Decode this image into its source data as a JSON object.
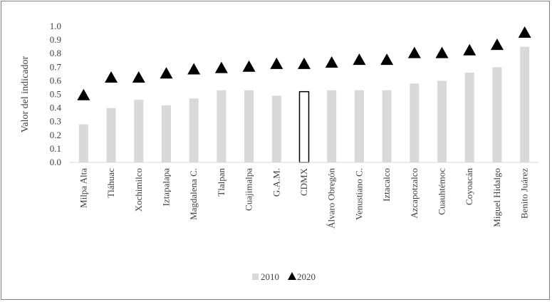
{
  "chart_data": {
    "type": "bar",
    "ylabel": "Valor del indicador",
    "ylim": [
      0,
      1.0
    ],
    "yticks": [
      "0.0",
      "0.1",
      "0.2",
      "0.3",
      "0.4",
      "0.5",
      "0.6",
      "0.7",
      "0.8",
      "0.9",
      "1.0"
    ],
    "grid": false,
    "legend_position": "bottom",
    "highlight_category": "CDMX",
    "categories": [
      "Milpa Alta",
      "Tláhuac",
      "Xochimilco",
      "Iztapalapa",
      "Magdalena C.",
      "Tlalpan",
      "Cuajimalpa",
      "G.A.M.",
      "CDMX",
      "Álvaro Obregón",
      "Venustiano C.",
      "Iztacalco",
      "Azcapotzalco",
      "Cuauhtémoc",
      "Coyoacán",
      "Miguel Hidalgo",
      "Benito Juárez"
    ],
    "series": [
      {
        "name": "2010",
        "type": "bar",
        "color": "#d9d9d9",
        "values": [
          0.28,
          0.4,
          0.46,
          0.42,
          0.47,
          0.53,
          0.53,
          0.49,
          0.52,
          0.53,
          0.53,
          0.53,
          0.58,
          0.6,
          0.66,
          0.7,
          0.85
        ]
      },
      {
        "name": "2020",
        "type": "marker",
        "marker": "triangle",
        "color": "#000000",
        "values": [
          0.49,
          0.62,
          0.62,
          0.65,
          0.68,
          0.69,
          0.7,
          0.72,
          0.72,
          0.73,
          0.75,
          0.75,
          0.8,
          0.8,
          0.82,
          0.86,
          0.95
        ]
      }
    ]
  }
}
